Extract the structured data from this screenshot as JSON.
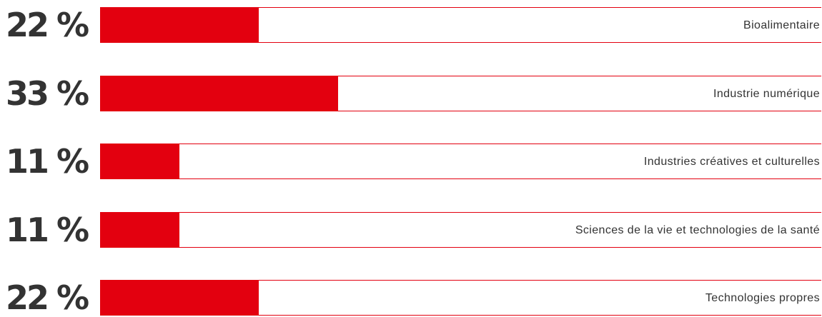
{
  "chart_data": {
    "type": "bar",
    "orientation": "horizontal",
    "categories": [
      "Bioalimentaire",
      "Industrie numérique",
      "Industries créatives et culturelles",
      "Sciences de la vie et technologies de la santé",
      "Technologies propres"
    ],
    "values": [
      22,
      33,
      11,
      11,
      22
    ],
    "value_labels": [
      "22 %",
      "33 %",
      "11 %",
      "11 %",
      "22 %"
    ],
    "xlim": [
      0,
      100
    ],
    "grid": false,
    "legend": "none",
    "title": "",
    "xlabel": "",
    "ylabel": ""
  },
  "colors": {
    "bar": "#e3000f",
    "text": "#333333",
    "track_border": "#e3000f"
  }
}
